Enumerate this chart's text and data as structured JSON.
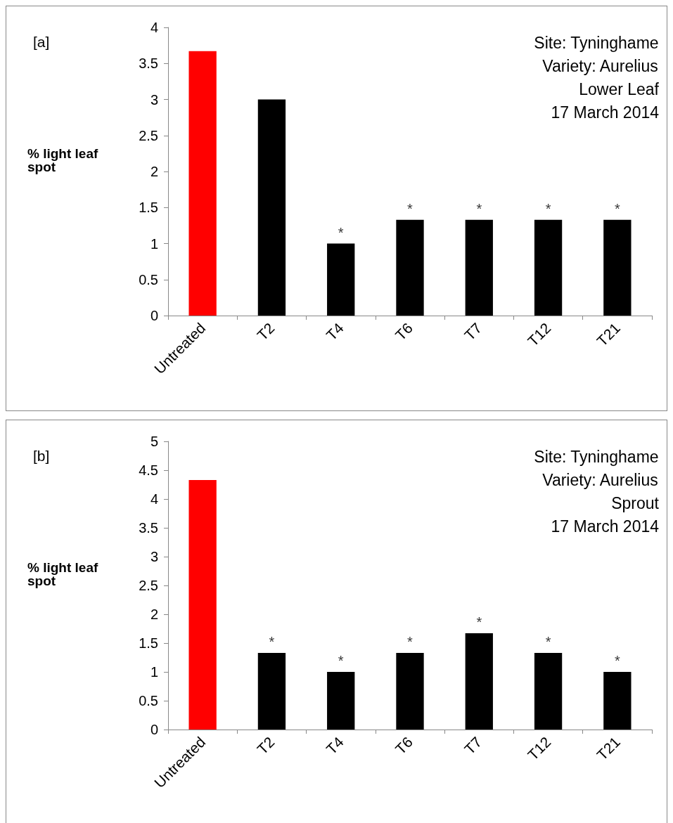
{
  "chart_data": [
    {
      "type": "bar",
      "ylabel": "% light leaf spot",
      "categories": [
        "Untreated",
        "T2",
        "T4",
        "T6",
        "T7",
        "T12",
        "T21"
      ],
      "values": [
        3.67,
        3.0,
        1.0,
        1.33,
        1.33,
        1.33,
        1.33
      ],
      "colors": [
        "#ff0000",
        "#000000",
        "#000000",
        "#000000",
        "#000000",
        "#000000",
        "#000000"
      ],
      "ylim": [
        0,
        4
      ],
      "yticks": [
        0,
        0.5,
        1,
        1.5,
        2,
        2.5,
        3,
        3.5,
        4
      ],
      "grid": false,
      "annotations": [
        "[a]",
        "Site: Tyninghame",
        "Variety: Aurelius",
        "Lower Leaf",
        "17 March 2014",
        {
          "text": "*",
          "x": "T4",
          "y": 1.0
        },
        {
          "text": "*",
          "x": "T6",
          "y": 1.33
        },
        {
          "text": "*",
          "x": "T7",
          "y": 1.33
        },
        {
          "text": "*",
          "x": "T12",
          "y": 1.33
        },
        {
          "text": "*",
          "x": "T21",
          "y": 1.33
        }
      ]
    },
    {
      "type": "bar",
      "ylabel": "% light leaf spot",
      "categories": [
        "Untreated",
        "T2",
        "T4",
        "T6",
        "T7",
        "T12",
        "T21"
      ],
      "values": [
        4.33,
        1.33,
        1.0,
        1.33,
        1.67,
        1.33,
        1.0
      ],
      "colors": [
        "#ff0000",
        "#000000",
        "#000000",
        "#000000",
        "#000000",
        "#000000",
        "#000000"
      ],
      "ylim": [
        0,
        5
      ],
      "yticks": [
        0,
        0.5,
        1,
        1.5,
        2,
        2.5,
        3,
        3.5,
        4,
        4.5,
        5
      ],
      "grid": false,
      "annotations": [
        "[b]",
        "Site: Tyninghame",
        "Variety: Aurelius",
        "Sprout",
        "17 March 2014",
        {
          "text": "*",
          "x": "T2",
          "y": 1.33
        },
        {
          "text": "*",
          "x": "T4",
          "y": 1.0
        },
        {
          "text": "*",
          "x": "T6",
          "y": 1.33
        },
        {
          "text": "*",
          "x": "T7",
          "y": 1.67
        },
        {
          "text": "*",
          "x": "T12",
          "y": 1.33
        },
        {
          "text": "*",
          "x": "T21",
          "y": 1.0
        }
      ]
    }
  ]
}
